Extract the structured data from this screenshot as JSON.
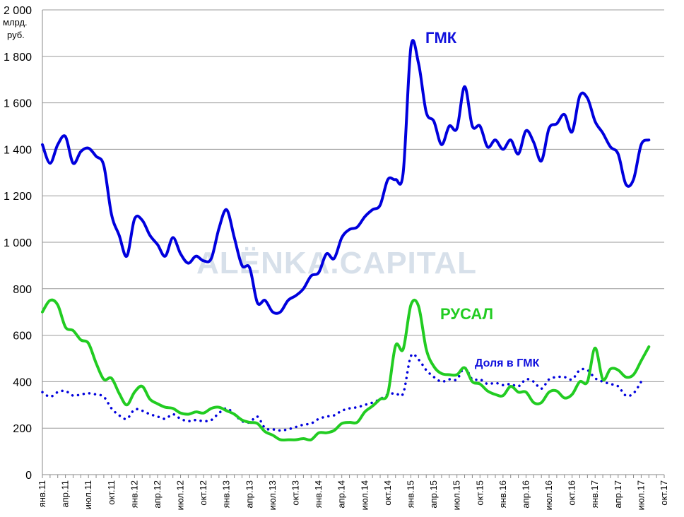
{
  "chart_data": {
    "type": "line",
    "ylabel": "млрд. руб.",
    "ylim": [
      0,
      2000
    ],
    "yticks": [
      0,
      200,
      400,
      600,
      800,
      1000,
      1200,
      1400,
      1600,
      1800,
      2000
    ],
    "ytick_labels": [
      "0",
      "200",
      "400",
      "600",
      "800",
      "1 000",
      "1 200",
      "1 400",
      "1 600",
      "1 800",
      "2 000"
    ],
    "xlim": [
      0,
      81
    ],
    "xticks": [
      0,
      3,
      6,
      9,
      12,
      15,
      18,
      21,
      24,
      27,
      30,
      33,
      36,
      39,
      42,
      45,
      48,
      51,
      54,
      57,
      60,
      63,
      66,
      69,
      72,
      75,
      78,
      81
    ],
    "xtick_labels": [
      "янв.11",
      "апр.11",
      "июл.11",
      "окт.11",
      "янв.12",
      "апр.12",
      "июл.12",
      "окт.12",
      "янв.13",
      "апр.13",
      "июл.13",
      "окт.13",
      "янв.14",
      "апр.14",
      "июл.14",
      "окт.14",
      "янв.15",
      "апр.15",
      "июл.15",
      "окт.15",
      "янв.16",
      "апр.16",
      "июл.16",
      "окт.16",
      "янв.17",
      "апр.17",
      "июл.17",
      "окт.17"
    ],
    "series": [
      {
        "name": "ГМК",
        "style": "solid",
        "color": "#0000dd",
        "x": [
          0,
          1,
          2,
          3,
          4,
          5,
          6,
          7,
          8,
          9,
          10,
          11,
          12,
          13,
          14,
          15,
          16,
          17,
          18,
          19,
          20,
          21,
          22,
          23,
          24,
          25,
          26,
          27,
          28,
          29,
          30,
          31,
          32,
          33,
          34,
          35,
          36,
          37,
          38,
          39,
          40,
          41,
          42,
          43,
          44,
          45,
          46,
          47,
          48,
          49,
          50,
          51,
          52,
          53,
          54,
          55,
          56,
          57,
          58,
          59,
          60,
          61,
          62,
          63,
          64,
          65,
          66,
          67,
          68,
          69,
          70,
          71,
          72,
          73,
          74,
          75,
          76,
          77,
          78,
          79
        ],
        "values": [
          1420,
          1340,
          1420,
          1455,
          1340,
          1390,
          1405,
          1370,
          1330,
          1120,
          1030,
          940,
          1100,
          1095,
          1030,
          990,
          940,
          1020,
          950,
          910,
          940,
          920,
          930,
          1060,
          1140,
          1020,
          900,
          890,
          740,
          750,
          700,
          700,
          750,
          770,
          800,
          855,
          870,
          950,
          930,
          1020,
          1055,
          1065,
          1110,
          1140,
          1160,
          1270,
          1270,
          1300,
          1840,
          1770,
          1560,
          1520,
          1420,
          1500,
          1490,
          1670,
          1500,
          1500,
          1410,
          1440,
          1400,
          1440,
          1380,
          1480,
          1430,
          1350,
          1490,
          1510,
          1550,
          1475,
          1630,
          1620,
          1520,
          1470,
          1410,
          1380,
          1250,
          1270,
          1420,
          1440
        ]
      },
      {
        "name": "РУСАЛ",
        "style": "solid",
        "color": "#22cc22",
        "x": [
          0,
          1,
          2,
          3,
          4,
          5,
          6,
          7,
          8,
          9,
          10,
          11,
          12,
          13,
          14,
          15,
          16,
          17,
          18,
          19,
          20,
          21,
          22,
          23,
          24,
          25,
          26,
          27,
          28,
          29,
          30,
          31,
          32,
          33,
          34,
          35,
          36,
          37,
          38,
          39,
          40,
          41,
          42,
          43,
          44,
          45,
          46,
          47,
          48,
          49,
          50,
          51,
          52,
          53,
          54,
          55,
          56,
          57,
          58,
          59,
          60,
          61,
          62,
          63,
          64,
          65,
          66,
          67,
          68,
          69,
          70,
          71,
          72,
          73,
          74,
          75,
          76,
          77,
          78,
          79
        ],
        "values": [
          700,
          750,
          730,
          635,
          620,
          580,
          565,
          480,
          410,
          415,
          350,
          300,
          355,
          380,
          325,
          305,
          290,
          285,
          265,
          260,
          270,
          265,
          285,
          290,
          275,
          260,
          235,
          225,
          220,
          185,
          170,
          150,
          150,
          150,
          155,
          150,
          180,
          180,
          190,
          220,
          225,
          225,
          270,
          295,
          325,
          350,
          555,
          540,
          730,
          725,
          540,
          465,
          435,
          430,
          430,
          460,
          400,
          390,
          360,
          345,
          340,
          380,
          355,
          355,
          310,
          310,
          355,
          360,
          330,
          345,
          400,
          400,
          545,
          410,
          455,
          450,
          420,
          430,
          490,
          550
        ]
      },
      {
        "name": "Доля в ГМК",
        "style": "dotted",
        "color": "#0000dd",
        "x": [
          0,
          1,
          2,
          3,
          4,
          5,
          6,
          7,
          8,
          9,
          10,
          11,
          12,
          13,
          14,
          15,
          16,
          17,
          18,
          19,
          20,
          21,
          22,
          23,
          24,
          25,
          26,
          27,
          28,
          29,
          30,
          31,
          32,
          33,
          34,
          35,
          36,
          37,
          38,
          39,
          40,
          41,
          42,
          43,
          44,
          45,
          46,
          47,
          48,
          49,
          50,
          51,
          52,
          53,
          54,
          55,
          56,
          57,
          58,
          59,
          60,
          61,
          62,
          63,
          64,
          65,
          66,
          67,
          68,
          69,
          70,
          71,
          72,
          73,
          74,
          75,
          76,
          77,
          78
        ],
        "values": [
          355,
          335,
          355,
          360,
          340,
          345,
          350,
          345,
          335,
          285,
          255,
          240,
          280,
          275,
          260,
          250,
          240,
          260,
          240,
          230,
          235,
          230,
          235,
          265,
          285,
          260,
          230,
          225,
          250,
          200,
          195,
          190,
          195,
          205,
          215,
          220,
          240,
          250,
          255,
          275,
          285,
          290,
          300,
          310,
          325,
          345,
          350,
          350,
          510,
          495,
          450,
          420,
          400,
          410,
          410,
          460,
          410,
          410,
          390,
          395,
          385,
          390,
          380,
          410,
          400,
          370,
          410,
          420,
          420,
          410,
          450,
          450,
          415,
          400,
          390,
          380,
          340,
          350,
          400
        ]
      }
    ],
    "annotations": {
      "gmk_label": "ГМК",
      "rusal_label": "РУСАЛ",
      "share_label": "Доля в ГМК"
    },
    "watermark": "ALЁNKA.CAPITAL",
    "grid": true
  }
}
